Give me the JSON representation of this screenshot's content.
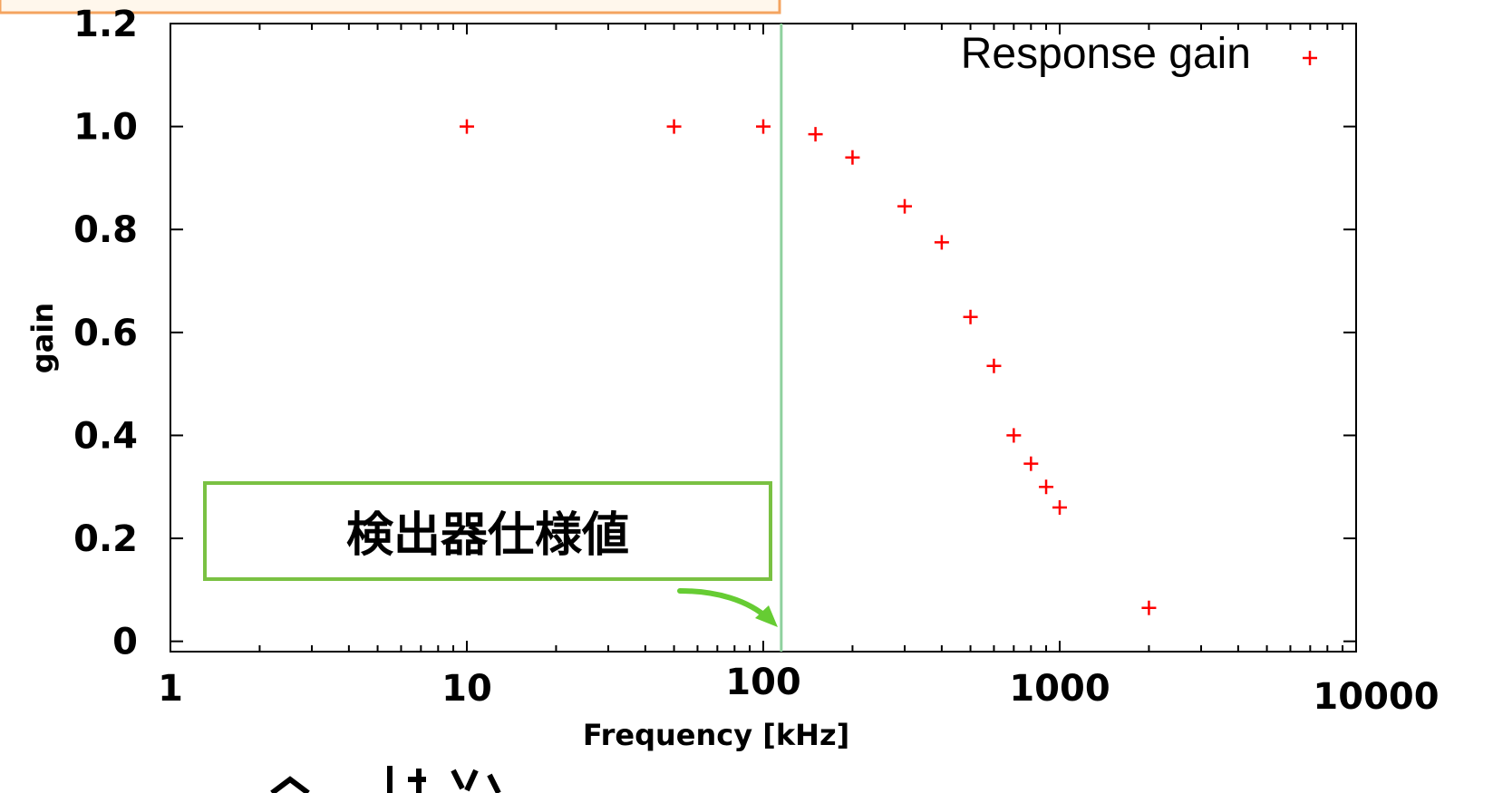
{
  "chart_data": {
    "type": "scatter",
    "title": "",
    "xlabel": "Frequency [kHz]",
    "ylabel": "gain",
    "xscale": "log",
    "xlim": [
      1,
      10000
    ],
    "ylim": [
      -0.02,
      1.2
    ],
    "x_tick_labels": [
      "1",
      "10",
      "100",
      "1000",
      "10000"
    ],
    "x_tick_values": [
      1,
      10,
      100,
      1000,
      10000
    ],
    "y_tick_labels": [
      "0",
      "0.2",
      "0.4",
      "0.6",
      "0.8",
      "1.0",
      "1.2"
    ],
    "y_tick_values": [
      0,
      0.2,
      0.4,
      0.6,
      0.8,
      1.0,
      1.2
    ],
    "grid": false,
    "legend_position": "top-right",
    "series": [
      {
        "name": "Response gain",
        "color": "#ff0000",
        "marker": "plus",
        "x": [
          10,
          50,
          100,
          150,
          200,
          300,
          400,
          500,
          600,
          700,
          800,
          900,
          1000,
          2000
        ],
        "y": [
          1.0,
          1.0,
          1.0,
          0.985,
          0.94,
          0.845,
          0.775,
          0.63,
          0.535,
          0.4,
          0.345,
          0.3,
          0.26,
          0.065
        ]
      }
    ],
    "spec_line": {
      "x": 115,
      "color": "#8fd19e"
    },
    "annotation": {
      "text": "検出器仕様値",
      "border_color": "#7ac143",
      "arrow_color": "#66cc33"
    }
  },
  "top_box_border_color": "#f4a460"
}
